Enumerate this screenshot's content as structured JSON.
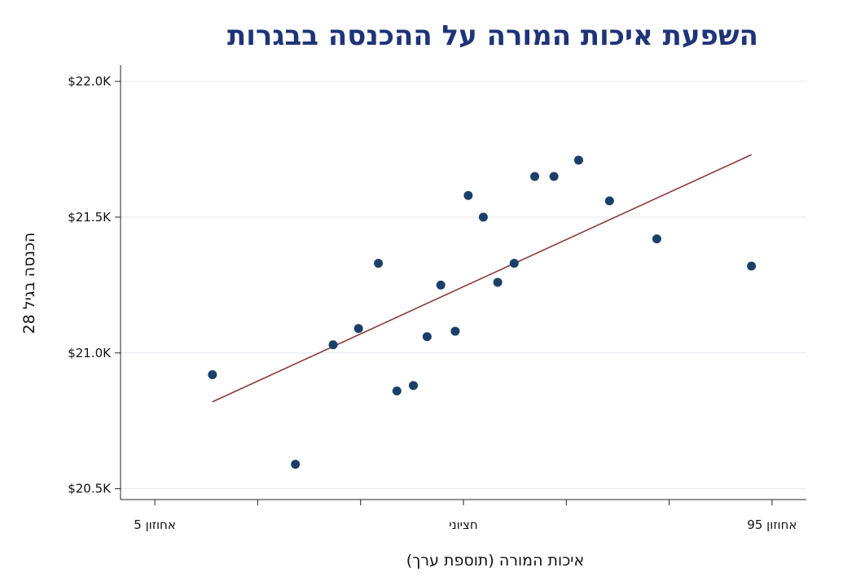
{
  "chart_data": {
    "type": "scatter",
    "title": "השפעת איכות המורה על ההכנסה בבגרות",
    "xlabel": "איכות המורה (תוספת ערך)",
    "ylabel": "הכנסה בגיל 28",
    "xlim": [
      0,
      100
    ],
    "ylim": [
      20.46,
      22.06
    ],
    "x_ticks": [
      5,
      20,
      35,
      50,
      65,
      80,
      95
    ],
    "x_tick_labels": [
      {
        "x": 5,
        "label": "אחוזון 5"
      },
      {
        "x": 50,
        "label": "חציוני"
      },
      {
        "x": 95,
        "label": "אחוזון 95"
      }
    ],
    "y_ticks": [
      {
        "value": 20.5,
        "label": "$20.5K"
      },
      {
        "value": 21.0,
        "label": "$21.0K"
      },
      {
        "value": 21.5,
        "label": "$21.5K"
      },
      {
        "value": 22.0,
        "label": "$22.0K"
      }
    ],
    "grid": true,
    "points": [
      {
        "x": 13.4,
        "y": 20.92
      },
      {
        "x": 25.5,
        "y": 20.59
      },
      {
        "x": 31.0,
        "y": 21.03
      },
      {
        "x": 34.7,
        "y": 21.09
      },
      {
        "x": 37.6,
        "y": 21.33
      },
      {
        "x": 40.3,
        "y": 20.86
      },
      {
        "x": 42.7,
        "y": 20.88
      },
      {
        "x": 44.7,
        "y": 21.06
      },
      {
        "x": 46.7,
        "y": 21.25
      },
      {
        "x": 48.8,
        "y": 21.08
      },
      {
        "x": 50.7,
        "y": 21.58
      },
      {
        "x": 52.9,
        "y": 21.5
      },
      {
        "x": 55.0,
        "y": 21.26
      },
      {
        "x": 57.4,
        "y": 21.33
      },
      {
        "x": 60.4,
        "y": 21.65
      },
      {
        "x": 63.2,
        "y": 21.65
      },
      {
        "x": 66.8,
        "y": 21.71
      },
      {
        "x": 71.3,
        "y": 21.56
      },
      {
        "x": 78.2,
        "y": 21.42
      },
      {
        "x": 92.0,
        "y": 21.32
      }
    ],
    "fit_line": {
      "x": [
        13.4,
        92.0
      ],
      "y": [
        20.82,
        21.73
      ]
    },
    "colors": {
      "points": "#1b4068",
      "fit_line": "#8b3a3a",
      "title": "#1f3478",
      "grid": "#e3e8ee"
    }
  }
}
